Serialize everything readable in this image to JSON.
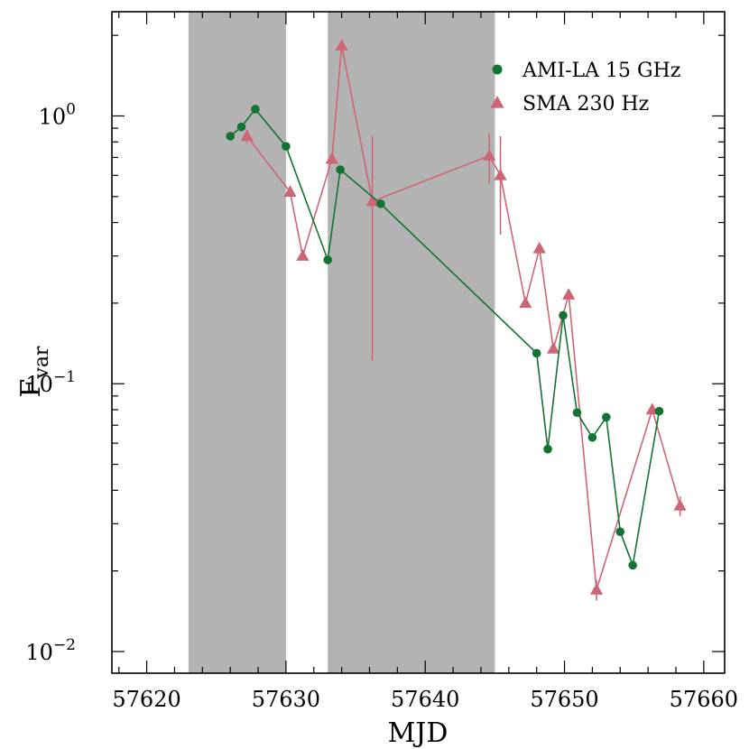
{
  "chart_data": {
    "type": "scatter",
    "title": "",
    "xlabel": "MJD",
    "ylabel_main": "F",
    "ylabel_sub": "var",
    "xlim": [
      57617.5,
      57661.5
    ],
    "ylim": [
      0.0083,
      2.45
    ],
    "yscale": "log",
    "x_ticks": [
      57620,
      57630,
      57640,
      57650,
      57660
    ],
    "x_tick_labels": [
      "57620",
      "57630",
      "57640",
      "57650",
      "57660"
    ],
    "y_major_ticks": [
      {
        "value": 0.01,
        "base": "10",
        "exp": "−2"
      },
      {
        "value": 0.1,
        "base": "10",
        "exp": "−1"
      },
      {
        "value": 1,
        "base": "10",
        "exp": "0"
      }
    ],
    "y_minor_ticks": [
      0.02,
      0.03,
      0.04,
      0.05,
      0.06,
      0.07,
      0.08,
      0.09,
      0.2,
      0.3,
      0.4,
      0.5,
      0.6,
      0.7,
      0.8,
      0.9,
      2
    ],
    "shaded_regions": [
      {
        "x0": 57623,
        "x1": 57630
      },
      {
        "x0": 57633,
        "x1": 57645
      }
    ],
    "legend_position": "top-right",
    "series": [
      {
        "name": "AMI-LA 15 GHz",
        "marker": "circle",
        "color": "#137333",
        "points": [
          {
            "x": 57626.0,
            "y": 0.84
          },
          {
            "x": 57626.8,
            "y": 0.91
          },
          {
            "x": 57627.8,
            "y": 1.06
          },
          {
            "x": 57630.0,
            "y": 0.77
          },
          {
            "x": 57633.0,
            "y": 0.29
          },
          {
            "x": 57633.9,
            "y": 0.63
          },
          {
            "x": 57636.8,
            "y": 0.47
          },
          {
            "x": 57648.0,
            "y": 0.13
          },
          {
            "x": 57648.8,
            "y": 0.057
          },
          {
            "x": 57649.9,
            "y": 0.18
          },
          {
            "x": 57650.9,
            "y": 0.078
          },
          {
            "x": 57652.0,
            "y": 0.063
          },
          {
            "x": 57653.0,
            "y": 0.075
          },
          {
            "x": 57654.0,
            "y": 0.028
          },
          {
            "x": 57654.9,
            "y": 0.021
          },
          {
            "x": 57656.8,
            "y": 0.079
          }
        ]
      },
      {
        "name": "SMA 230 Hz",
        "marker": "triangle",
        "color": "#cc6677",
        "points": [
          {
            "x": 57627.2,
            "y": 0.84,
            "yerr": [
              0.79,
              0.89
            ]
          },
          {
            "x": 57630.3,
            "y": 0.52
          },
          {
            "x": 57631.2,
            "y": 0.3
          },
          {
            "x": 57633.3,
            "y": 0.69
          },
          {
            "x": 57634.0,
            "y": 1.83
          },
          {
            "x": 57636.2,
            "y": 0.48,
            "yerr": [
              0.122,
              0.84
            ]
          },
          {
            "x": 57644.6,
            "y": 0.71,
            "yerr": [
              0.56,
              0.86
            ]
          },
          {
            "x": 57645.4,
            "y": 0.6,
            "yerr": [
              0.36,
              0.84
            ]
          },
          {
            "x": 57647.2,
            "y": 0.2
          },
          {
            "x": 57648.2,
            "y": 0.32
          },
          {
            "x": 57649.2,
            "y": 0.135
          },
          {
            "x": 57650.3,
            "y": 0.215
          },
          {
            "x": 57652.3,
            "y": 0.017,
            "yerr": [
              0.0155,
              0.0185
            ]
          },
          {
            "x": 57656.3,
            "y": 0.08
          },
          {
            "x": 57658.3,
            "y": 0.035,
            "yerr": [
              0.032,
              0.038
            ]
          }
        ]
      }
    ]
  }
}
